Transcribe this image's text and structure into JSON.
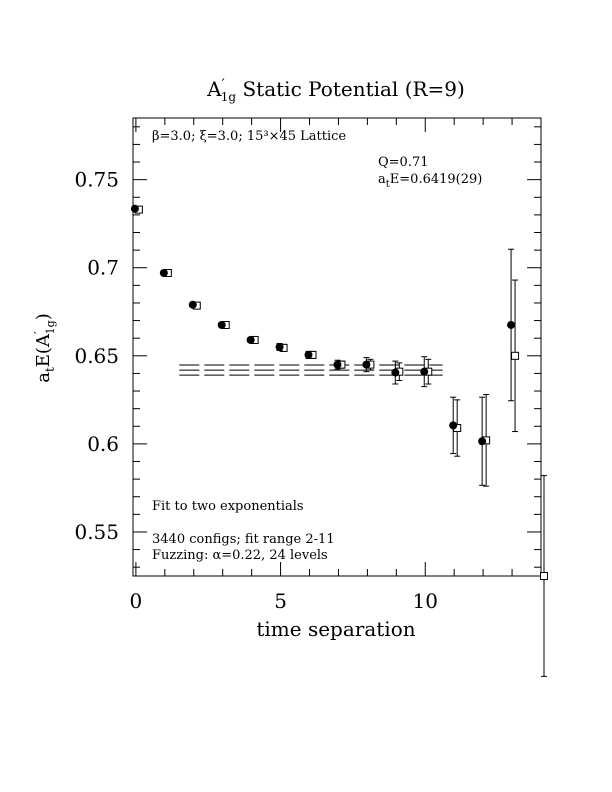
{
  "chart_data": {
    "type": "scatter",
    "title": "A′1g Static Potential (R=9)",
    "title_parts": {
      "main": "A",
      "prime": "′",
      "sub": "1g",
      "rest": " Static Potential (R=9)"
    },
    "xlabel": "time separation",
    "ylabel": "atE(A′1g)",
    "ylabel_parts": {
      "a": "a",
      "a_sub": "t",
      "mid": "E(A",
      "prime": "′",
      "sub": "1g",
      "end": ")"
    },
    "xlim": [
      -0.1,
      14
    ],
    "ylim": [
      0.525,
      0.785
    ],
    "x_ticks": [
      0,
      5,
      10
    ],
    "x_tick_labels": [
      "0",
      "5",
      "10"
    ],
    "y_ticks": [
      0.55,
      0.6,
      0.65,
      0.7,
      0.75
    ],
    "y_tick_labels": [
      "0.55",
      "0.6",
      "0.65",
      "0.7",
      "0.75"
    ],
    "annotations": {
      "lattice": "β=3.0; ξ=3.0; 15³×45 Lattice",
      "q": "Q=0.71",
      "energy": "atE=0.6419(29)",
      "energy_parts": {
        "a": "a",
        "sub": "t",
        "rest": "E=0.6419(29)"
      },
      "fit_desc": "Fit to two exponentials",
      "configs": "3440 configs; fit range 2-11",
      "fuzzing": "Fuzzing: α=0.22, 24 levels"
    },
    "series": [
      {
        "marker": "filled-circle",
        "points": [
          {
            "x": 0,
            "y": 0.7335,
            "err": 0.001
          },
          {
            "x": 1,
            "y": 0.697,
            "err": 0.001
          },
          {
            "x": 2,
            "y": 0.679,
            "err": 0.0012
          },
          {
            "x": 3,
            "y": 0.6675,
            "err": 0.0015
          },
          {
            "x": 4,
            "y": 0.659,
            "err": 0.0015
          },
          {
            "x": 5,
            "y": 0.655,
            "err": 0.002
          },
          {
            "x": 6,
            "y": 0.6505,
            "err": 0.002
          },
          {
            "x": 7,
            "y": 0.645,
            "err": 0.0025
          },
          {
            "x": 8,
            "y": 0.645,
            "err": 0.004
          },
          {
            "x": 9,
            "y": 0.6405,
            "err": 0.0065
          },
          {
            "x": 10,
            "y": 0.641,
            "err": 0.0085
          },
          {
            "x": 11,
            "y": 0.6105,
            "err": 0.016
          },
          {
            "x": 12,
            "y": 0.6015,
            "err": 0.025
          },
          {
            "x": 13,
            "y": 0.6675,
            "err": 0.043
          }
        ]
      },
      {
        "marker": "open-square",
        "points": [
          {
            "x": 0,
            "y": 0.733,
            "err": 0.001
          },
          {
            "x": 1,
            "y": 0.697,
            "err": 0.001
          },
          {
            "x": 2,
            "y": 0.6785,
            "err": 0.0012
          },
          {
            "x": 3,
            "y": 0.6675,
            "err": 0.0015
          },
          {
            "x": 4,
            "y": 0.659,
            "err": 0.0015
          },
          {
            "x": 5,
            "y": 0.6545,
            "err": 0.002
          },
          {
            "x": 6,
            "y": 0.6505,
            "err": 0.002
          },
          {
            "x": 7,
            "y": 0.645,
            "err": 0.002
          },
          {
            "x": 8,
            "y": 0.645,
            "err": 0.003
          },
          {
            "x": 9,
            "y": 0.641,
            "err": 0.005
          },
          {
            "x": 10,
            "y": 0.641,
            "err": 0.007
          },
          {
            "x": 11,
            "y": 0.609,
            "err": 0.016
          },
          {
            "x": 12,
            "y": 0.602,
            "err": 0.026
          },
          {
            "x": 13,
            "y": 0.65,
            "err": 0.043
          },
          {
            "x": 14,
            "y": 0.525,
            "err": 0.057
          }
        ]
      }
    ],
    "fit": {
      "value": 0.6419,
      "error": 0.0029,
      "x_range": [
        1.5,
        10.6
      ],
      "style": "dashed"
    }
  }
}
